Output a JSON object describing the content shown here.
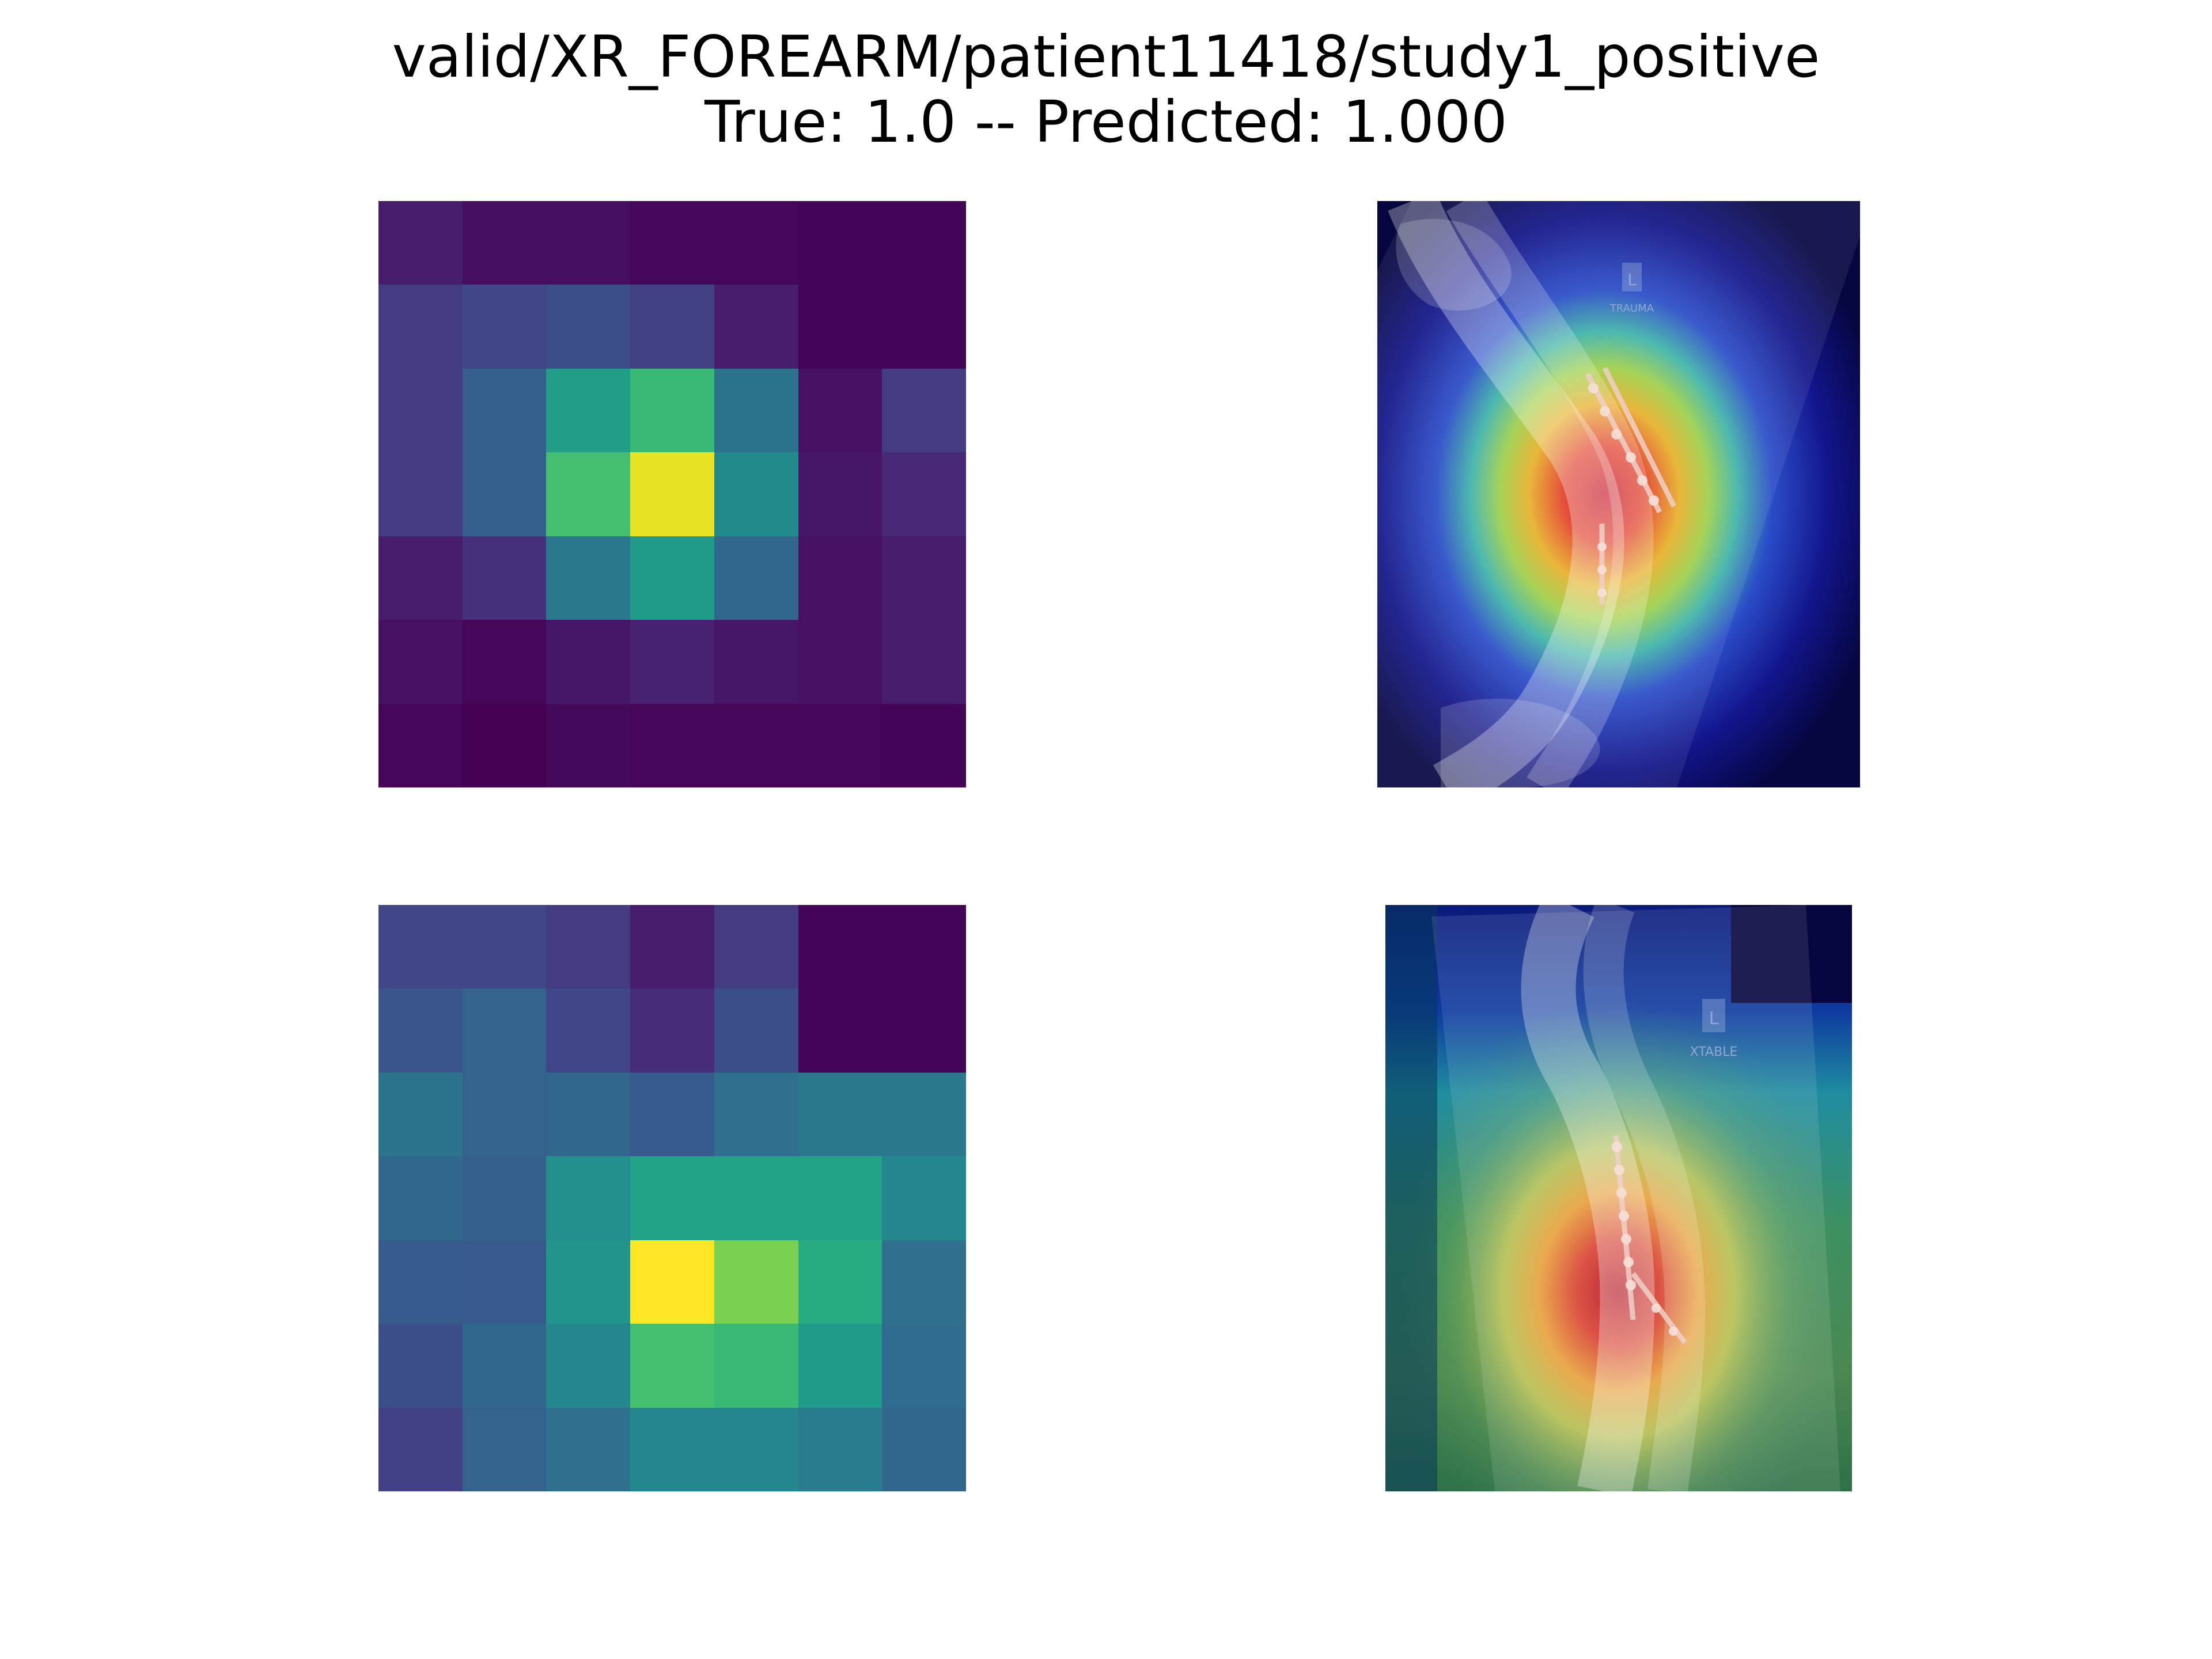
{
  "figure": {
    "title_line_1": "valid/XR_FOREARM/patient11418/study1_positive",
    "title_line_2": "True: 1.0 -- Predicted: 1.000"
  },
  "chart_data": [
    {
      "type": "heatmap",
      "panel": "top-left",
      "colormap": "viridis",
      "vmin": 0,
      "vmax": 1,
      "values": [
        [
          0.1,
          0.05,
          0.05,
          0.02,
          0.02,
          0.01,
          0.01
        ],
        [
          0.22,
          0.26,
          0.3,
          0.24,
          0.1,
          0.01,
          0.01
        ],
        [
          0.22,
          0.38,
          0.7,
          0.8,
          0.48,
          0.06,
          0.22
        ],
        [
          0.22,
          0.38,
          0.82,
          0.98,
          0.6,
          0.08,
          0.15
        ],
        [
          0.1,
          0.18,
          0.5,
          0.68,
          0.42,
          0.06,
          0.1
        ],
        [
          0.06,
          0.02,
          0.08,
          0.12,
          0.08,
          0.06,
          0.1
        ],
        [
          0.02,
          0.0,
          0.03,
          0.02,
          0.02,
          0.02,
          0.01
        ]
      ]
    },
    {
      "type": "heatmap",
      "panel": "bottom-left",
      "colormap": "viridis",
      "vmin": 0,
      "vmax": 1,
      "values": [
        [
          0.26,
          0.26,
          0.22,
          0.1,
          0.22,
          0.01,
          0.01
        ],
        [
          0.33,
          0.4,
          0.26,
          0.16,
          0.3,
          0.01,
          0.01
        ],
        [
          0.48,
          0.4,
          0.42,
          0.36,
          0.46,
          0.5,
          0.5
        ],
        [
          0.42,
          0.38,
          0.62,
          0.72,
          0.72,
          0.72,
          0.58
        ],
        [
          0.36,
          0.35,
          0.65,
          1.0,
          0.88,
          0.76,
          0.46
        ],
        [
          0.3,
          0.42,
          0.58,
          0.82,
          0.8,
          0.68,
          0.44
        ],
        [
          0.24,
          0.4,
          0.46,
          0.58,
          0.58,
          0.52,
          0.42
        ]
      ]
    }
  ],
  "overlays": {
    "top": {
      "marker_letter": "L",
      "marker_text": "TRAUMA",
      "colormap": "jet"
    },
    "bottom": {
      "marker_letter": "L",
      "marker_text": "XTABLE",
      "colormap": "jet"
    }
  }
}
